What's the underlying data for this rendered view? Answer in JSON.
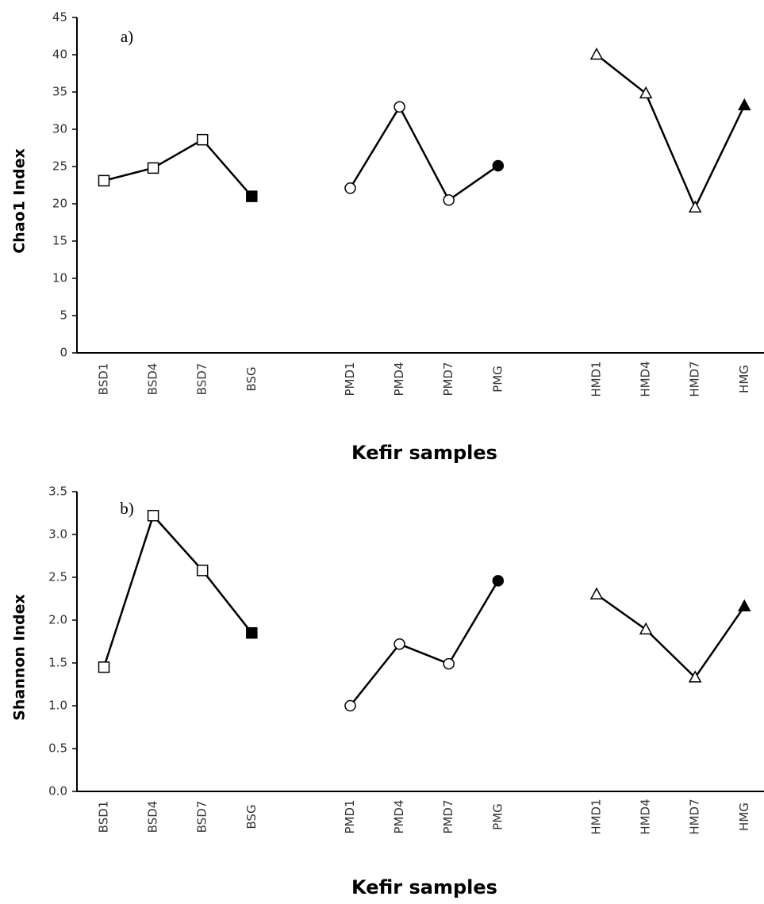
{
  "chart_data": [
    {
      "type": "line",
      "annotation": "a)",
      "ylabel": "Chao1 Index",
      "xlabel": "Kefir samples",
      "categories": [
        "BSD1",
        "BSD4",
        "BSD7",
        "BSG",
        null,
        "PMD1",
        "PMD4",
        "PMD7",
        "PMG",
        null,
        "HMD1",
        "HMD4",
        "HMD7",
        "HMG"
      ],
      "series": [
        {
          "marker": "square",
          "color": "#000000",
          "values": [
            23.1,
            24.8,
            28.6,
            21.0,
            null,
            null,
            null,
            null,
            null,
            null,
            null,
            null,
            null,
            null
          ]
        },
        {
          "marker": "circle",
          "color": "#000000",
          "values": [
            null,
            null,
            null,
            null,
            null,
            22.1,
            33.0,
            20.5,
            25.1,
            null,
            null,
            null,
            null,
            null
          ]
        },
        {
          "marker": "triangle",
          "color": "#000000",
          "values": [
            null,
            null,
            null,
            null,
            null,
            null,
            null,
            null,
            null,
            null,
            40.0,
            34.8,
            19.5,
            33.2
          ]
        }
      ],
      "ylim": [
        0,
        45
      ],
      "yticks": [
        0,
        5,
        10,
        15,
        20,
        25,
        30,
        35,
        40,
        45
      ],
      "grid": false
    },
    {
      "type": "line",
      "annotation": "b)",
      "ylabel": "Shannon Index",
      "xlabel": "Kefir samples",
      "categories": [
        "BSD1",
        "BSD4",
        "BSD7",
        "BSG",
        null,
        "PMD1",
        "PMD4",
        "PMD7",
        "PMG",
        null,
        "HMD1",
        "HMD4",
        "HMD7",
        "HMG"
      ],
      "series": [
        {
          "marker": "square",
          "color": "#000000",
          "values": [
            1.45,
            3.22,
            2.58,
            1.85,
            null,
            null,
            null,
            null,
            null,
            null,
            null,
            null,
            null,
            null
          ]
        },
        {
          "marker": "circle",
          "color": "#000000",
          "values": [
            null,
            null,
            null,
            null,
            null,
            1.0,
            1.72,
            1.49,
            2.46,
            null,
            null,
            null,
            null,
            null
          ]
        },
        {
          "marker": "triangle",
          "color": "#000000",
          "values": [
            null,
            null,
            null,
            null,
            null,
            null,
            null,
            null,
            null,
            null,
            2.3,
            1.89,
            1.33,
            2.16
          ]
        }
      ],
      "ylim": [
        0,
        3.5
      ],
      "yticks": [
        {
          "value": 0,
          "label": "0.0"
        },
        0.5,
        {
          "value": 1,
          "label": "1.0"
        },
        1.5,
        {
          "value": 2,
          "label": "2.0"
        },
        2.5,
        {
          "value": 3,
          "label": "3.0"
        },
        3.5
      ],
      "grid": false
    }
  ]
}
